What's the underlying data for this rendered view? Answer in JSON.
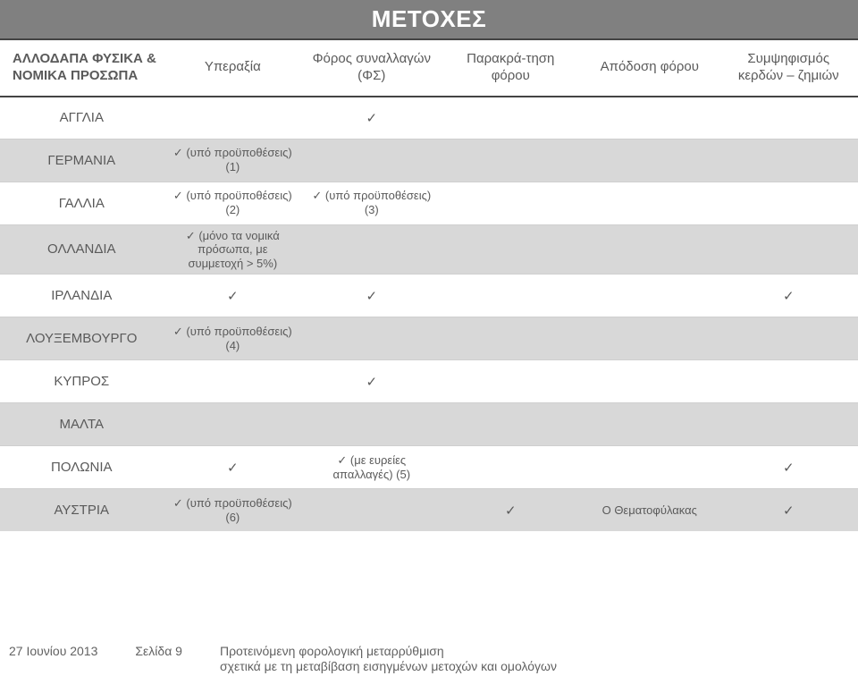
{
  "title": "ΜΕΤΟΧΕΣ",
  "columns": {
    "label": "ΑΛΛΟΔΑΠΑ ΦΥΣΙΚΑ & ΝΟΜΙΚΑ ΠΡΟΣΩΠΑ",
    "c1": "Υπεραξία",
    "c2": "Φόρος συναλλαγών (ΦΣ)",
    "c3": "Παρακρά-τηση φόρου",
    "c4": "Απόδοση φόρου",
    "c5": "Συμψηφισμός κερδών – ζημιών"
  },
  "tick": "✓",
  "rows": [
    {
      "label": "ΑΓΓΛΙΑ",
      "alt": false,
      "c1": "",
      "c2": "✓",
      "c3": "",
      "c4": "",
      "c5": ""
    },
    {
      "label": "ΓΕΡΜΑΝΙΑ",
      "alt": true,
      "c1": "✓ (υπό προϋποθέσεις) (1)",
      "c2": "",
      "c3": "",
      "c4": "",
      "c5": ""
    },
    {
      "label": "ΓΑΛΛΙΑ",
      "alt": false,
      "c1": "✓ (υπό προϋποθέσεις) (2)",
      "c2": "✓ (υπό προϋποθέσεις) (3)",
      "c3": "",
      "c4": "",
      "c5": ""
    },
    {
      "label": "ΟΛΛΑΝΔΙΑ",
      "alt": true,
      "c1": "✓ (μόνο τα νομικά πρόσωπα, με συμμετοχή > 5%)",
      "c2": "",
      "c3": "",
      "c4": "",
      "c5": ""
    },
    {
      "label": "ΙΡΛΑΝΔΙΑ",
      "alt": false,
      "c1": "✓",
      "c2": "✓",
      "c3": "",
      "c4": "",
      "c5": "✓"
    },
    {
      "label": "ΛΟΥΞΕΜΒΟΥΡΓΟ",
      "alt": true,
      "c1": "✓ (υπό προϋποθέσεις) (4)",
      "c2": "",
      "c3": "",
      "c4": "",
      "c5": ""
    },
    {
      "label": "ΚΥΠΡΟΣ",
      "alt": false,
      "c1": "",
      "c2": "✓",
      "c3": "",
      "c4": "",
      "c5": ""
    },
    {
      "label": "ΜΑΛΤΑ",
      "alt": true,
      "c1": "",
      "c2": "",
      "c3": "",
      "c4": "",
      "c5": ""
    },
    {
      "label": "ΠΟΛΩΝΙΑ",
      "alt": false,
      "c1": "✓",
      "c2": "✓ (με ευρείες απαλλαγές) (5)",
      "c3": "",
      "c4": "",
      "c5": "✓"
    },
    {
      "label": "ΑΥΣΤΡΙΑ",
      "alt": true,
      "c1": "✓ (υπό προϋποθέσεις) (6)",
      "c2": "",
      "c3": "✓",
      "c4": "Ο Θεματοφύλακας",
      "c5": "✓"
    }
  ],
  "footer": {
    "date": "27 Ιουνίου 2013",
    "page": "Σελίδα 9",
    "note1": "Προτεινόμενη φορολογική μεταρρύθμιση",
    "note2": "σχετικά με τη μεταβίβαση εισηγμένων μετοχών και ομολόγων"
  },
  "colors": {
    "title_bg": "#808080",
    "title_fg": "#ffffff",
    "row_alt_bg": "#d8d8d8",
    "rule": "#444444",
    "text": "#5a5a5a"
  }
}
